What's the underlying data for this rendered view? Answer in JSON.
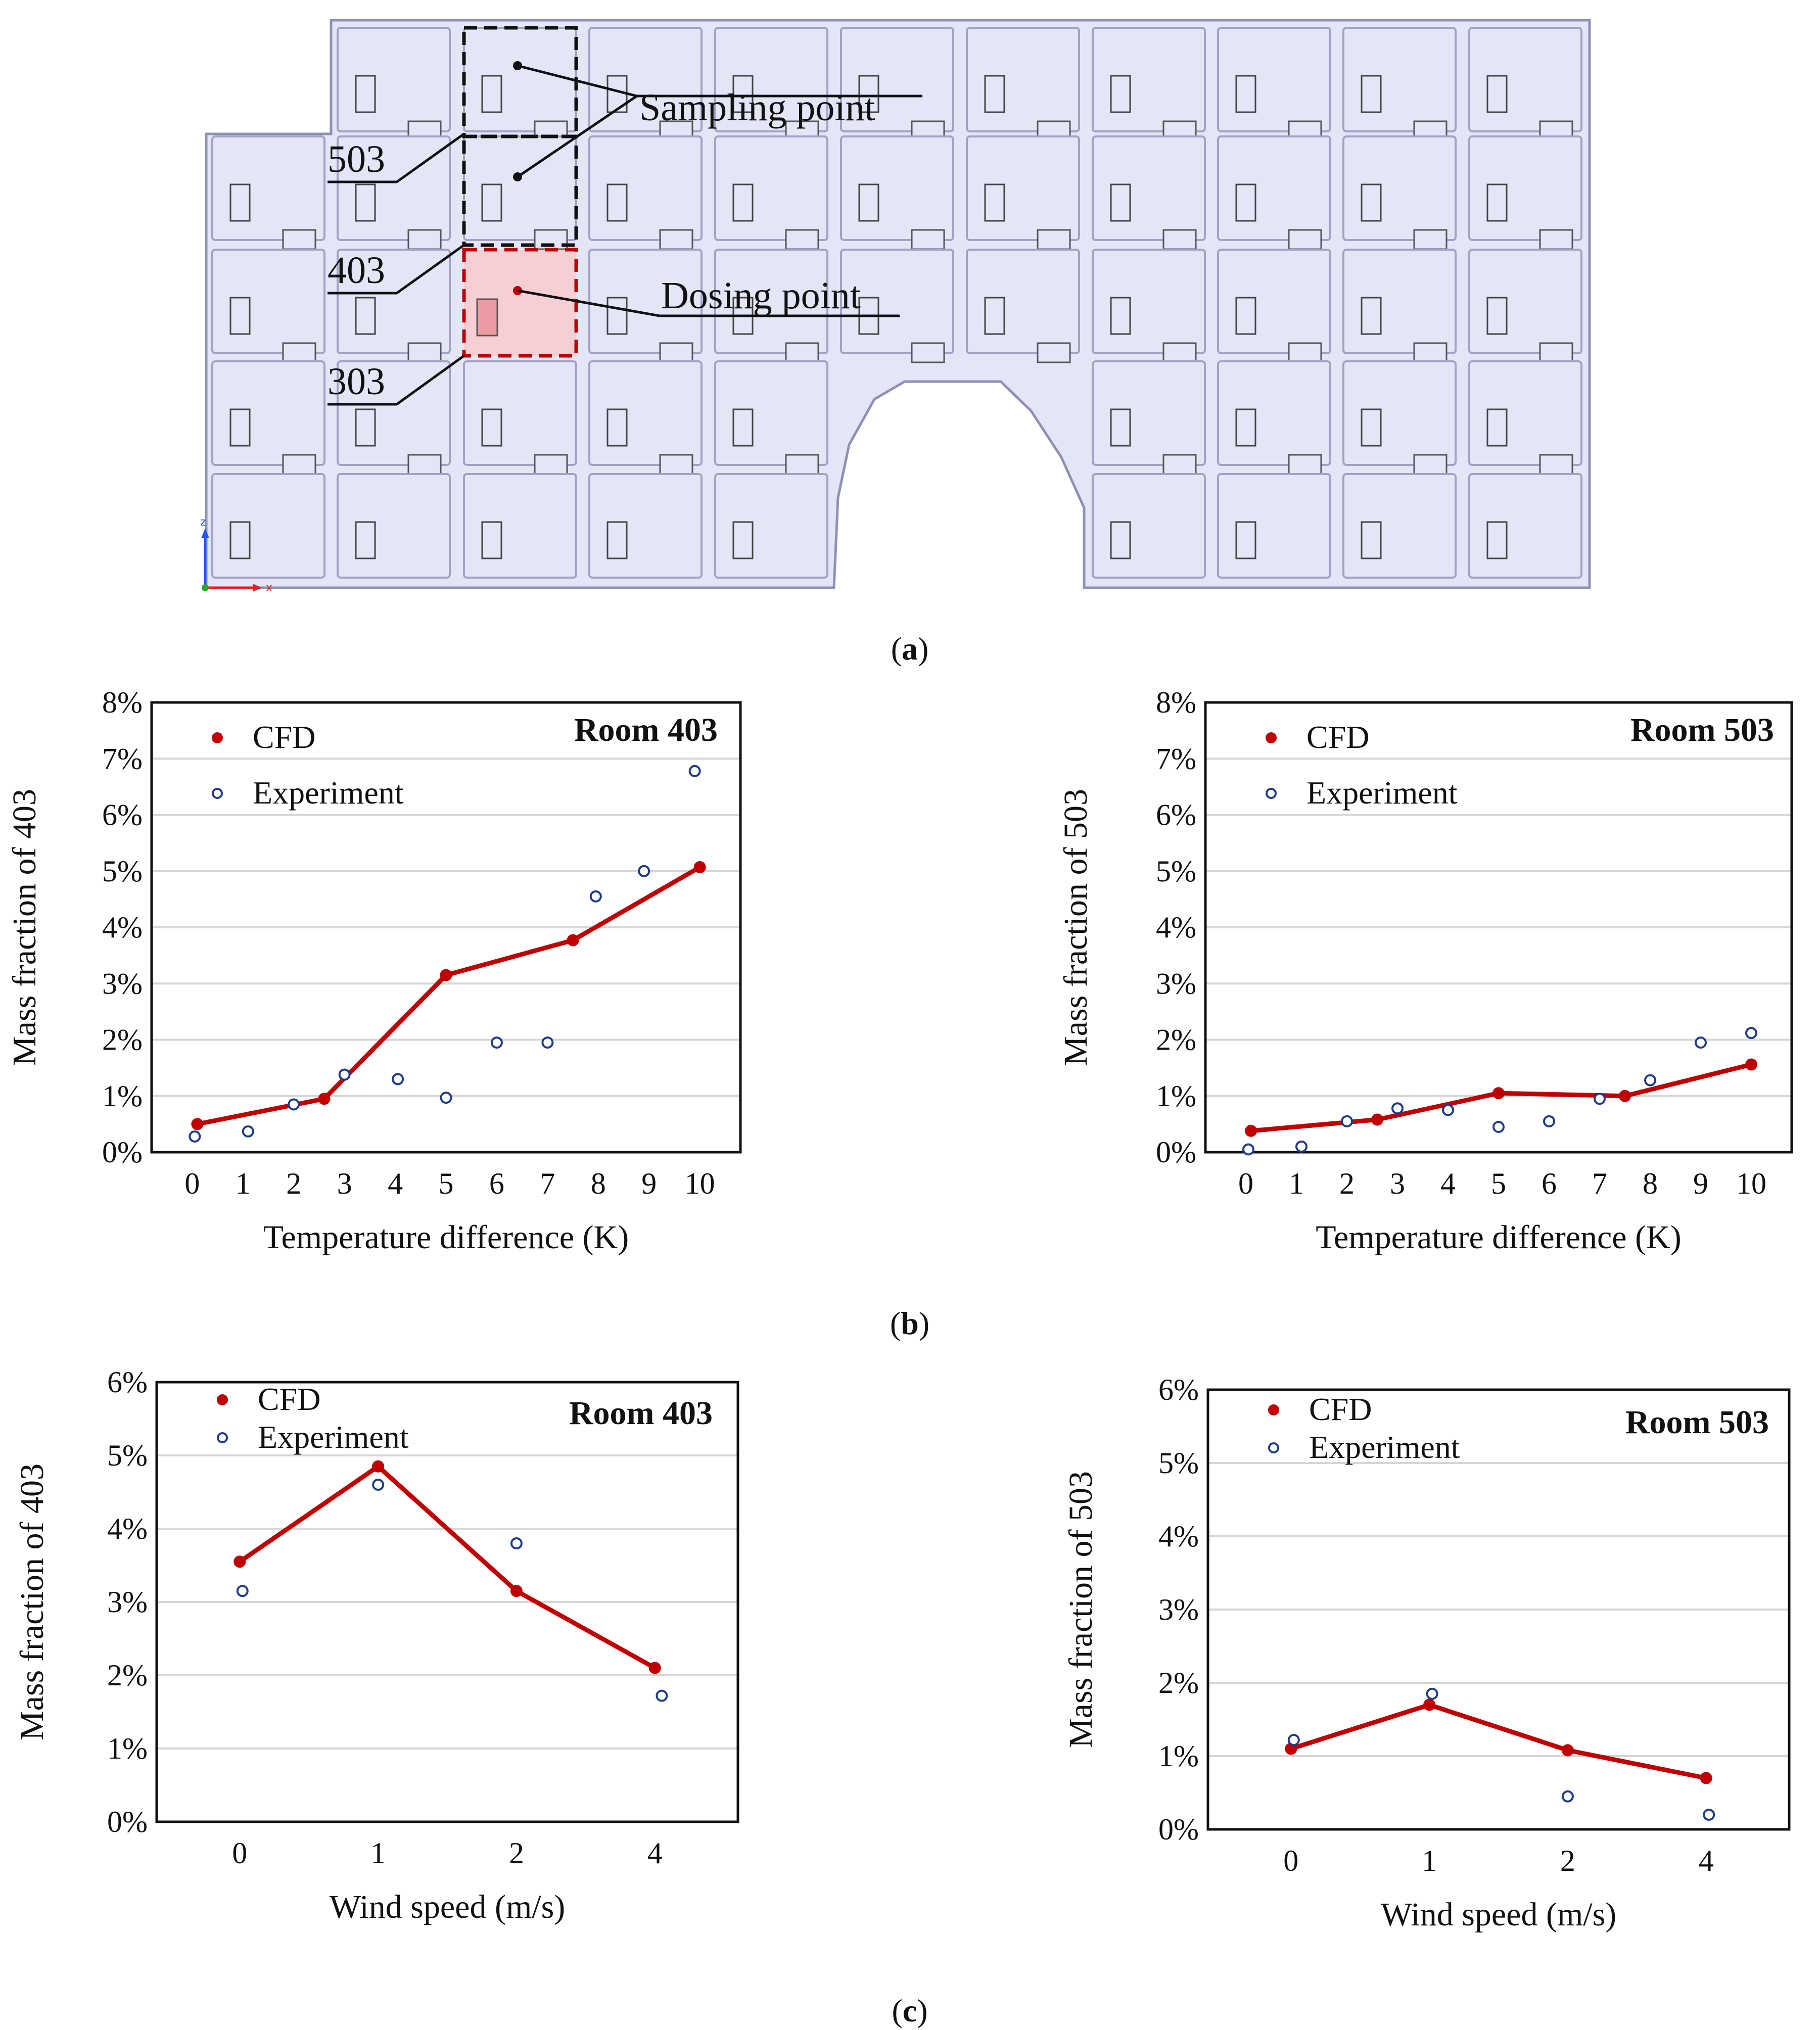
{
  "figure": {
    "panel_labels": {
      "a": "a",
      "b": "b",
      "c": "c"
    },
    "building": {
      "room_labels": [
        "503",
        "403",
        "303"
      ],
      "sampling_label": "Sampling point",
      "dosing_label": "Dosing point",
      "axis_z": "z",
      "axis_x": "x"
    }
  },
  "colors": {
    "cfd": "#c00000",
    "experiment": "#1f3c88",
    "room_fill": "#e4e5f7",
    "dose_fill": "#f6cfd4"
  },
  "chart_data": [
    {
      "id": "b-403",
      "type": "line",
      "title": "Room 403",
      "xlabel": "Temperature difference (K)",
      "ylabel": "Mass fraction of 403",
      "xlim": [
        -0.8,
        10.8
      ],
      "ylim": [
        0,
        8
      ],
      "xticks": [
        0,
        1,
        2,
        3,
        4,
        5,
        6,
        7,
        8,
        9,
        10
      ],
      "xtick_labels": [
        "0",
        "1",
        "2",
        "3",
        "4",
        "5",
        "6",
        "7",
        "8",
        "9",
        "10"
      ],
      "yticks": [
        0,
        1,
        2,
        3,
        4,
        5,
        6,
        7,
        8
      ],
      "ytick_labels": [
        "0%",
        "1%",
        "2%",
        "3%",
        "4%",
        "5%",
        "6%",
        "7%",
        "8%"
      ],
      "series": [
        {
          "name": "CFD",
          "style": "line",
          "x": [
            0.1,
            2.6,
            5,
            7.5,
            10
          ],
          "y": [
            0.5,
            0.95,
            3.15,
            3.77,
            5.07
          ]
        },
        {
          "name": "Experiment",
          "style": "marker",
          "x": [
            0.05,
            1.1,
            2,
            3,
            4.05,
            5,
            6,
            7,
            7.95,
            8.9,
            9.9
          ],
          "y": [
            0.28,
            0.37,
            0.85,
            1.38,
            1.3,
            0.97,
            1.95,
            1.95,
            4.55,
            5.0,
            6.78
          ]
        }
      ]
    },
    {
      "id": "b-503",
      "type": "line",
      "title": "Room 503",
      "xlabel": "Temperature difference (K)",
      "ylabel": "Mass fraction of 503",
      "xlim": [
        -0.8,
        10.8
      ],
      "ylim": [
        0,
        8
      ],
      "xticks": [
        0,
        1,
        2,
        3,
        4,
        5,
        6,
        7,
        8,
        9,
        10
      ],
      "xtick_labels": [
        "0",
        "1",
        "2",
        "3",
        "4",
        "5",
        "6",
        "7",
        "8",
        "9",
        "10"
      ],
      "yticks": [
        0,
        1,
        2,
        3,
        4,
        5,
        6,
        7,
        8
      ],
      "ytick_labels": [
        "0%",
        "1%",
        "2%",
        "3%",
        "4%",
        "5%",
        "6%",
        "7%",
        "8%"
      ],
      "series": [
        {
          "name": "CFD",
          "style": "line",
          "x": [
            0.1,
            2.6,
            5,
            7.5,
            10
          ],
          "y": [
            0.38,
            0.58,
            1.05,
            1.0,
            1.56
          ]
        },
        {
          "name": "Experiment",
          "style": "marker",
          "x": [
            0.05,
            1.1,
            2,
            3,
            4,
            5,
            6,
            7,
            8,
            9,
            10
          ],
          "y": [
            0.05,
            0.1,
            0.55,
            0.78,
            0.75,
            0.45,
            0.55,
            0.95,
            1.28,
            1.95,
            2.12
          ]
        }
      ]
    },
    {
      "id": "c-403",
      "type": "line",
      "title": "Room 403",
      "xlabel": "Wind speed (m/s)",
      "ylabel": "Mass fraction of 403",
      "xlim": [
        -0.6,
        3.6
      ],
      "ylim": [
        0,
        6
      ],
      "xticks": [
        0,
        1,
        2,
        3
      ],
      "xtick_labels": [
        "0",
        "1",
        "2",
        "4"
      ],
      "yticks": [
        0,
        1,
        2,
        3,
        4,
        5,
        6
      ],
      "ytick_labels": [
        "0%",
        "1%",
        "2%",
        "3%",
        "4%",
        "5%",
        "6%"
      ],
      "series": [
        {
          "name": "CFD",
          "style": "line",
          "x": [
            0,
            1,
            2,
            3
          ],
          "y": [
            3.55,
            4.85,
            3.15,
            2.1
          ]
        },
        {
          "name": "Experiment",
          "style": "marker",
          "x": [
            0.02,
            1,
            2,
            3.05
          ],
          "y": [
            3.15,
            4.6,
            3.8,
            1.72
          ]
        }
      ]
    },
    {
      "id": "c-503",
      "type": "line",
      "title": "Room 503",
      "xlabel": "Wind speed (m/s)",
      "ylabel": "Mass fraction of 503",
      "xlim": [
        -0.6,
        3.6
      ],
      "ylim": [
        0,
        6
      ],
      "xticks": [
        0,
        1,
        2,
        3
      ],
      "xtick_labels": [
        "0",
        "1",
        "2",
        "4"
      ],
      "yticks": [
        0,
        1,
        2,
        3,
        4,
        5,
        6
      ],
      "ytick_labels": [
        "0%",
        "1%",
        "2%",
        "3%",
        "4%",
        "5%",
        "6%"
      ],
      "series": [
        {
          "name": "CFD",
          "style": "line",
          "x": [
            0,
            1,
            2,
            3
          ],
          "y": [
            1.1,
            1.7,
            1.08,
            0.7
          ]
        },
        {
          "name": "Experiment",
          "style": "marker",
          "x": [
            0.02,
            1.02,
            2,
            3.02
          ],
          "y": [
            1.22,
            1.85,
            0.45,
            0.2
          ]
        }
      ]
    }
  ]
}
